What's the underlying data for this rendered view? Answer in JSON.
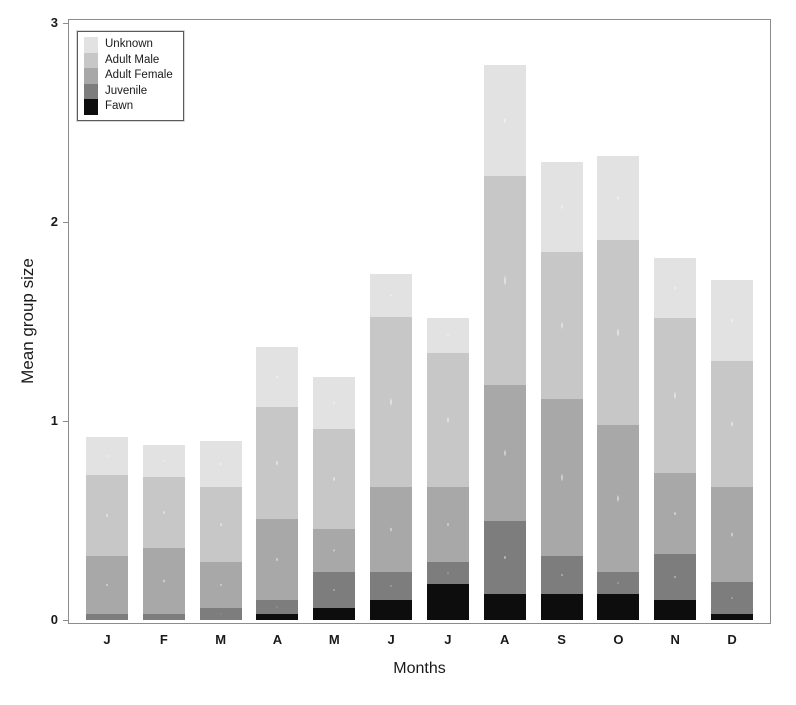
{
  "chart_data": {
    "type": "bar",
    "stacked": true,
    "title": "",
    "xlabel": "Months",
    "ylabel": "Mean group size",
    "ylim": [
      0,
      3
    ],
    "y_tick_values": [
      0,
      1,
      2,
      3
    ],
    "y_tick_labels": [
      "0",
      "1",
      "2",
      "3"
    ],
    "categories": [
      "J",
      "F",
      "M",
      "A",
      "M",
      "J",
      "J",
      "A",
      "S",
      "O",
      "N",
      "D"
    ],
    "grid": false,
    "legend_position": "top-left",
    "legend_order_top_to_bottom": [
      "Unknown",
      "Adult Male",
      "Adult Female",
      "Juvenile",
      "Fawn"
    ],
    "series": [
      {
        "name": "Fawn",
        "color": "#0d0d0d",
        "values": [
          0.0,
          0.0,
          0.0,
          0.03,
          0.06,
          0.1,
          0.18,
          0.13,
          0.13,
          0.13,
          0.1,
          0.03
        ]
      },
      {
        "name": "Juvenile",
        "color": "#7d7d7d",
        "values": [
          0.03,
          0.03,
          0.06,
          0.07,
          0.18,
          0.14,
          0.11,
          0.37,
          0.19,
          0.11,
          0.23,
          0.16
        ]
      },
      {
        "name": "Adult Female",
        "color": "#a8a8a8",
        "values": [
          0.29,
          0.33,
          0.23,
          0.41,
          0.22,
          0.43,
          0.38,
          0.68,
          0.79,
          0.74,
          0.41,
          0.48
        ]
      },
      {
        "name": "Adult Male",
        "color": "#c7c7c7",
        "values": [
          0.41,
          0.36,
          0.38,
          0.56,
          0.5,
          0.85,
          0.67,
          1.05,
          0.74,
          0.93,
          0.78,
          0.63
        ]
      },
      {
        "name": "Unknown",
        "color": "#e2e2e2",
        "values": [
          0.19,
          0.16,
          0.23,
          0.3,
          0.26,
          0.22,
          0.18,
          0.56,
          0.45,
          0.42,
          0.3,
          0.41
        ]
      }
    ],
    "totals": [
      0.92,
      0.88,
      0.9,
      1.37,
      1.22,
      1.74,
      1.52,
      2.79,
      2.3,
      2.33,
      1.82,
      1.71
    ]
  }
}
